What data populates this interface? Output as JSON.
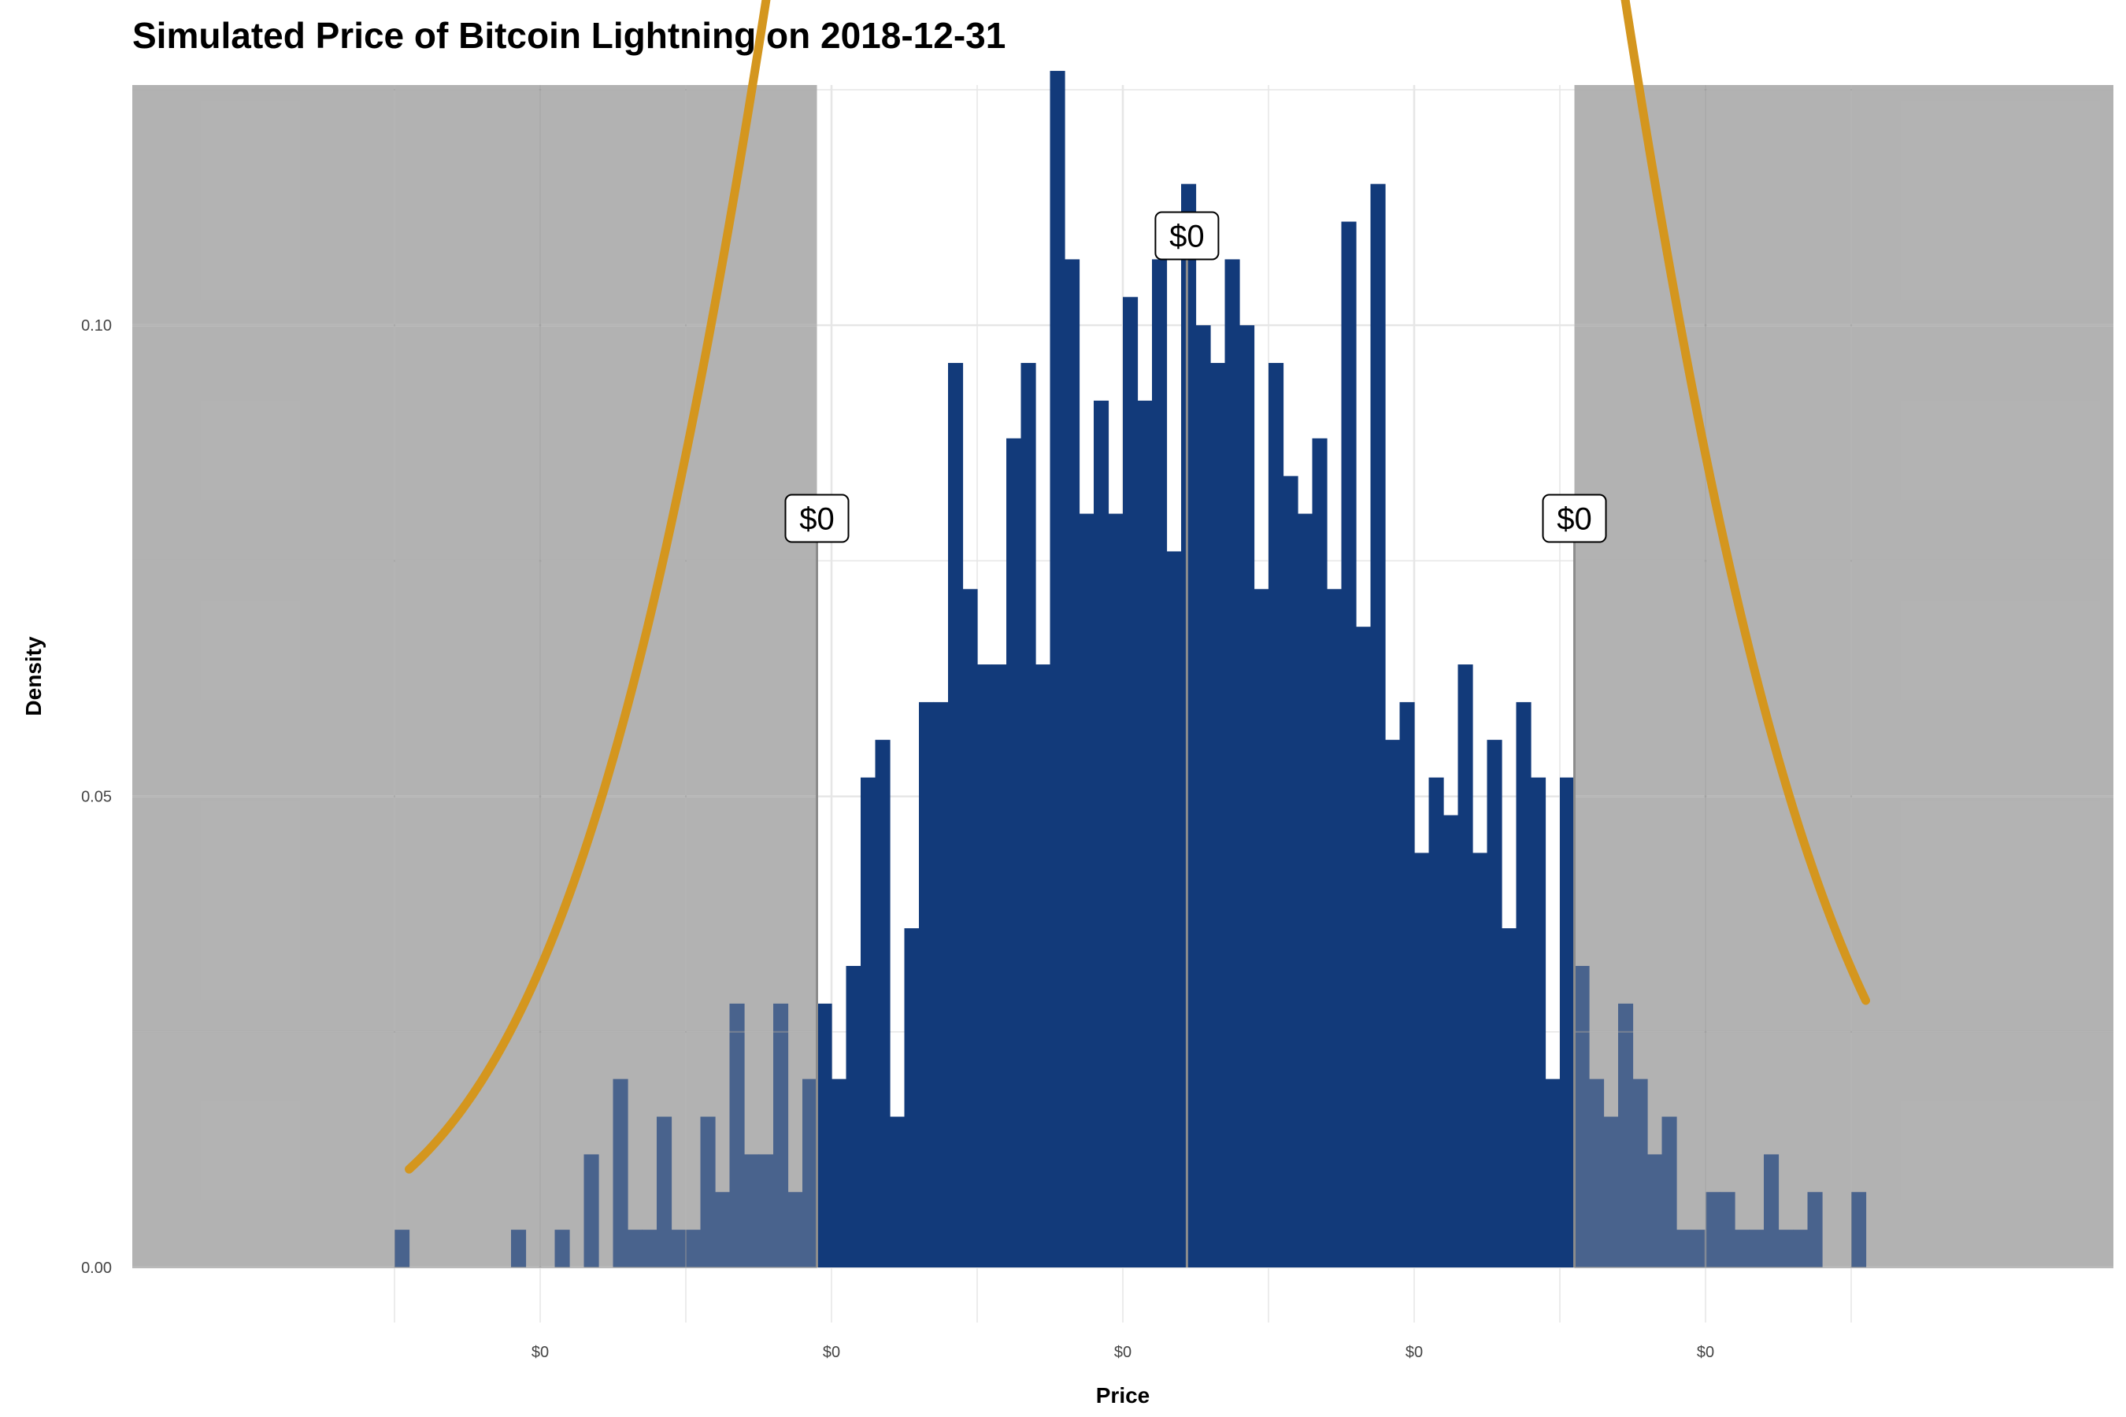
{
  "chart_data": {
    "type": "bar",
    "title": "Simulated Price of Bitcoin Lightning on 2018-12-31",
    "xlabel": "Price",
    "ylabel": "Density",
    "x_tick_labels": [
      "$0",
      "$0",
      "$0",
      "$0",
      "$0"
    ],
    "y_ticks": [
      0.0,
      0.05,
      0.1
    ],
    "y_tick_labels": [
      "0.00",
      "0.05",
      "0.10"
    ],
    "ylim": [
      0,
      0.1255
    ],
    "xlim": [
      -3.4,
      3.4
    ],
    "grid": true,
    "histogram": {
      "bin_start": -2.5,
      "bin_width": 0.05,
      "densities": [
        0.004,
        0,
        0,
        0,
        0,
        0,
        0,
        0,
        0.004,
        0,
        0,
        0.004,
        0,
        0.012,
        0,
        0.02,
        0.004,
        0.004,
        0.016,
        0.004,
        0.004,
        0.016,
        0.008,
        0.028,
        0.012,
        0.012,
        0.028,
        0.008,
        0.02,
        0.028,
        0.02,
        0.032,
        0.052,
        0.056,
        0.016,
        0.036,
        0.06,
        0.06,
        0.096,
        0.072,
        0.064,
        0.064,
        0.088,
        0.096,
        0.064,
        0.127,
        0.107,
        0.08,
        0.092,
        0.08,
        0.103,
        0.092,
        0.107,
        0.076,
        0.115,
        0.1,
        0.096,
        0.107,
        0.1,
        0.072,
        0.096,
        0.084,
        0.08,
        0.088,
        0.072,
        0.111,
        0.068,
        0.115,
        0.056,
        0.06,
        0.044,
        0.052,
        0.048,
        0.064,
        0.044,
        0.056,
        0.036,
        0.06,
        0.052,
        0.02,
        0.052,
        0.032,
        0.02,
        0.016,
        0.028,
        0.02,
        0.012,
        0.016,
        0.004,
        0.004,
        0.008,
        0.008,
        0.004,
        0.004,
        0.012,
        0.004,
        0.004,
        0.008,
        0,
        0,
        0.008
      ],
      "color": "#123a7a"
    },
    "density_curve": {
      "type": "normal",
      "mean": 0.25,
      "sd": 1.0,
      "x_range": [
        -2.45,
        2.55
      ],
      "color": "#d4961e"
    },
    "shaded_regions": [
      {
        "from": -3.4,
        "to": -1.05
      },
      {
        "from": 1.55,
        "to": 3.4
      }
    ],
    "shade_color": "#b3b3b3",
    "annotations": [
      {
        "x": -1.05,
        "y": 0.0795,
        "label": "$0"
      },
      {
        "x": 0.22,
        "y": 0.1095,
        "label": "$0"
      },
      {
        "x": 1.55,
        "y": 0.0795,
        "label": "$0"
      }
    ]
  }
}
